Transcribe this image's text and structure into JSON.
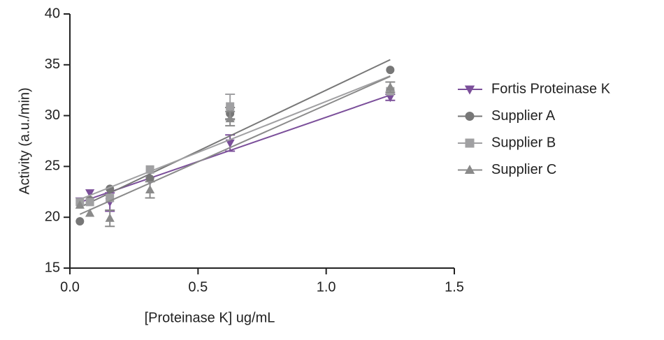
{
  "chart_data": {
    "type": "scatter",
    "xlabel": "[Proteinase K] ug/mL",
    "ylabel": "Activity (a.u./min)",
    "x": [
      0.039,
      0.078,
      0.156,
      0.3125,
      0.625,
      1.25
    ],
    "series": [
      {
        "name": "Fortis Proteinase K",
        "color": "#7b4f9a",
        "marker": "triangle-down",
        "values": [
          21.6,
          22.4,
          21.5,
          23.6,
          27.3,
          31.8
        ],
        "errors": [
          null,
          null,
          0.9,
          null,
          0.8,
          0.3
        ]
      },
      {
        "name": "Supplier A",
        "color": "#777777",
        "marker": "circle",
        "values": [
          19.6,
          21.7,
          22.8,
          23.8,
          30.2,
          34.5
        ],
        "errors": [
          null,
          null,
          null,
          null,
          0.6,
          null
        ]
      },
      {
        "name": "Supplier B",
        "color": "#a0a0a2",
        "marker": "square",
        "values": [
          21.5,
          21.5,
          21.9,
          24.7,
          30.9,
          32.4
        ],
        "errors": [
          null,
          null,
          null,
          null,
          1.2,
          null
        ]
      },
      {
        "name": "Supplier C",
        "color": "#8a8a8a",
        "marker": "triangle-up",
        "values": [
          21.2,
          20.4,
          19.9,
          22.7,
          29.7,
          32.8
        ],
        "errors": [
          null,
          null,
          0.8,
          0.8,
          0.7,
          0.5
        ]
      }
    ],
    "xlim": [
      0,
      1.5
    ],
    "xticks": [
      {
        "value": 0,
        "label": "0.0"
      },
      0.5,
      {
        "value": 1,
        "label": "1.0"
      },
      1.5
    ],
    "ylim": [
      15,
      40
    ],
    "yticks": [
      15,
      20,
      25,
      30,
      35,
      40
    ],
    "grid": false,
    "legend": "right"
  }
}
